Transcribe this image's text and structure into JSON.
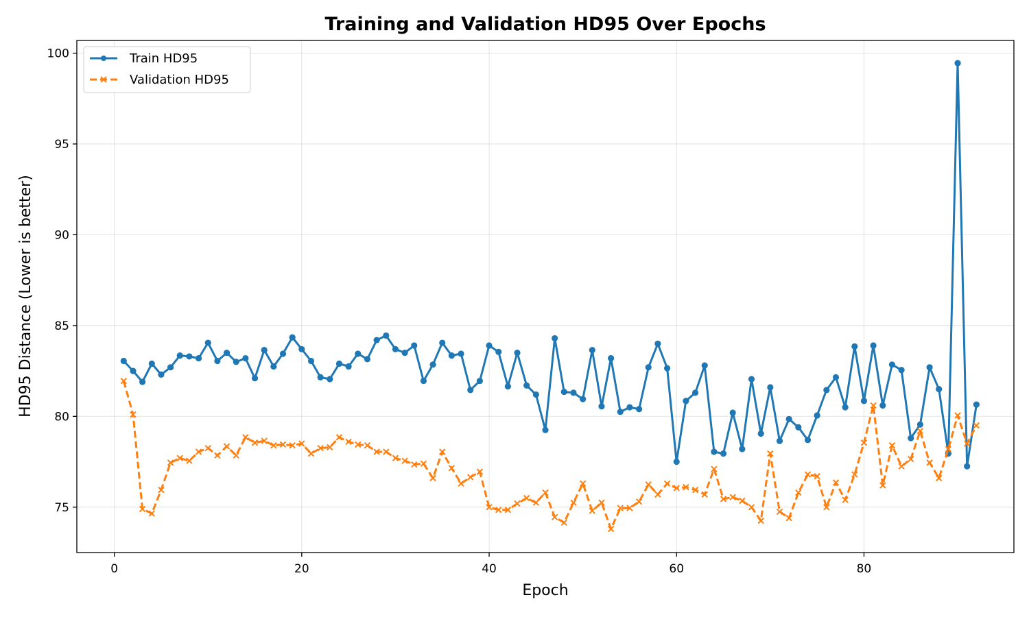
{
  "chart_data": {
    "type": "line",
    "title": "Training and Validation HD95 Over Epochs",
    "xlabel": "Epoch",
    "ylabel": "HD95 Distance (Lower is better)",
    "xlim": [
      -4,
      96
    ],
    "ylim": [
      72.5,
      100.7
    ],
    "xticks": [
      0,
      20,
      40,
      60,
      80
    ],
    "yticks": [
      75,
      80,
      85,
      90,
      95,
      100
    ],
    "grid": true,
    "legend_position": "top-left",
    "x": [
      1,
      2,
      3,
      4,
      5,
      6,
      7,
      8,
      9,
      10,
      11,
      12,
      13,
      14,
      15,
      16,
      17,
      18,
      19,
      20,
      21,
      22,
      23,
      24,
      25,
      26,
      27,
      28,
      29,
      30,
      31,
      32,
      33,
      34,
      35,
      36,
      37,
      38,
      39,
      40,
      41,
      42,
      43,
      44,
      45,
      46,
      47,
      48,
      49,
      50,
      51,
      52,
      53,
      54,
      55,
      56,
      57,
      58,
      59,
      60,
      61,
      62,
      63,
      64,
      65,
      66,
      67,
      68,
      69,
      70,
      71,
      72,
      73,
      74,
      75,
      76,
      77,
      78,
      79,
      80,
      81,
      82,
      83,
      84,
      85,
      86,
      87,
      88,
      89,
      90,
      91,
      92
    ],
    "series": [
      {
        "name": "Train HD95",
        "color": "#1f77b4",
        "style": "solid",
        "marker": "circle",
        "values": [
          83.05,
          82.5,
          81.9,
          82.9,
          82.3,
          82.7,
          83.35,
          83.3,
          83.2,
          84.05,
          83.05,
          83.5,
          83.0,
          83.2,
          82.1,
          83.65,
          82.75,
          83.45,
          84.35,
          83.7,
          83.05,
          82.15,
          82.05,
          82.9,
          82.75,
          83.45,
          83.15,
          84.2,
          84.45,
          83.7,
          83.5,
          83.9,
          81.95,
          82.85,
          84.05,
          83.35,
          83.45,
          81.45,
          81.95,
          83.9,
          83.55,
          81.65,
          83.5,
          81.7,
          81.2,
          79.25,
          84.3,
          81.35,
          81.3,
          80.95,
          83.65,
          80.55,
          83.2,
          80.25,
          80.5,
          80.4,
          82.7,
          84.0,
          82.65,
          77.5,
          80.85,
          81.3,
          82.8,
          78.05,
          77.95,
          80.2,
          78.2,
          82.05,
          79.05,
          81.6,
          78.65,
          79.85,
          79.4,
          78.7,
          80.05,
          81.45,
          82.15,
          80.5,
          83.85,
          80.85,
          83.9,
          80.6,
          82.85,
          82.55,
          78.8,
          79.55,
          82.7,
          81.5,
          77.95,
          99.45,
          77.25,
          80.65
        ]
      },
      {
        "name": "Validation HD95",
        "color": "#ff7f0e",
        "style": "dashed",
        "marker": "x",
        "values": [
          81.95,
          80.1,
          74.9,
          74.65,
          75.95,
          77.45,
          77.7,
          77.55,
          78.05,
          78.25,
          77.85,
          78.35,
          77.85,
          78.85,
          78.55,
          78.65,
          78.4,
          78.45,
          78.4,
          78.5,
          77.95,
          78.25,
          78.3,
          78.85,
          78.6,
          78.45,
          78.4,
          78.05,
          78.05,
          77.7,
          77.55,
          77.35,
          77.4,
          76.6,
          78.05,
          77.15,
          76.3,
          76.65,
          76.95,
          75.0,
          74.85,
          74.85,
          75.2,
          75.5,
          75.25,
          75.8,
          74.45,
          74.15,
          75.25,
          76.3,
          74.8,
          75.25,
          73.8,
          74.95,
          74.95,
          75.3,
          76.25,
          75.7,
          76.3,
          76.05,
          76.1,
          75.95,
          75.7,
          77.1,
          75.45,
          75.55,
          75.35,
          75.0,
          74.25,
          77.95,
          74.75,
          74.4,
          75.8,
          76.8,
          76.7,
          75.0,
          76.35,
          75.4,
          76.8,
          78.55,
          80.6,
          76.2,
          78.4,
          77.25,
          77.65,
          79.2,
          77.45,
          76.6,
          78.2,
          80.05,
          78.5,
          79.5
        ]
      }
    ]
  }
}
